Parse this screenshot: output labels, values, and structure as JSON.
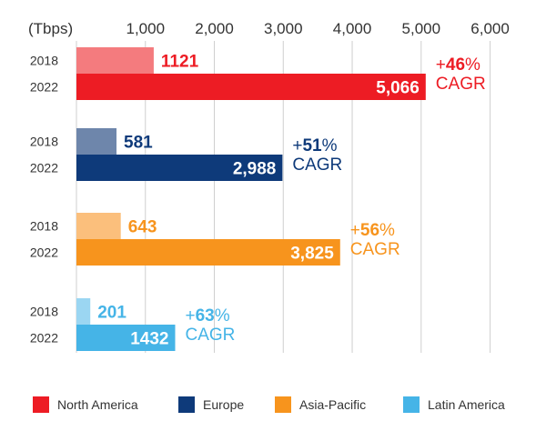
{
  "chart_data": {
    "type": "bar",
    "orientation": "horizontal",
    "unit_label": "(Tbps)",
    "xlim": [
      0,
      6000
    ],
    "x_ticks": [
      "1,000",
      "2,000",
      "3,000",
      "4,000",
      "5,000",
      "6,000"
    ],
    "x_tick_values": [
      1000,
      2000,
      3000,
      4000,
      5000,
      6000
    ],
    "grid": true,
    "legend_position": "bottom",
    "series": [
      {
        "name": "North America",
        "color": "#ed1c24",
        "color_light": "#f47b7e",
        "label_color": "#ed1c24",
        "values": [
          {
            "year": "2018",
            "value": 1121,
            "label": "1121"
          },
          {
            "year": "2022",
            "value": 5066,
            "label": "5,066"
          }
        ],
        "growth": {
          "prefix": "+",
          "number": "46",
          "suffix": "%",
          "caption": "CAGR"
        }
      },
      {
        "name": "Europe",
        "color": "#0e3a7a",
        "color_light": "#6e86ab",
        "label_color": "#0e3a7a",
        "values": [
          {
            "year": "2018",
            "value": 581,
            "label": "581"
          },
          {
            "year": "2022",
            "value": 2988,
            "label": "2,988"
          }
        ],
        "growth": {
          "prefix": "+",
          "number": "51",
          "suffix": "%",
          "caption": "CAGR"
        }
      },
      {
        "name": "Asia-Pacific",
        "color": "#f7941d",
        "color_light": "#fbbf7c",
        "label_color": "#f7941d",
        "values": [
          {
            "year": "2018",
            "value": 643,
            "label": "643"
          },
          {
            "year": "2022",
            "value": 3825,
            "label": "3,825"
          }
        ],
        "growth": {
          "prefix": "+",
          "number": "56",
          "suffix": "%",
          "caption": "CAGR"
        }
      },
      {
        "name": "Latin America",
        "color": "#45b4e7",
        "color_light": "#9bd6f2",
        "label_color": "#45b4e7",
        "values": [
          {
            "year": "2018",
            "value": 201,
            "label": "201"
          },
          {
            "year": "2022",
            "value": 1432,
            "label": "1432"
          }
        ],
        "growth": {
          "prefix": "+",
          "number": "63",
          "suffix": "%",
          "caption": "CAGR"
        }
      }
    ]
  }
}
